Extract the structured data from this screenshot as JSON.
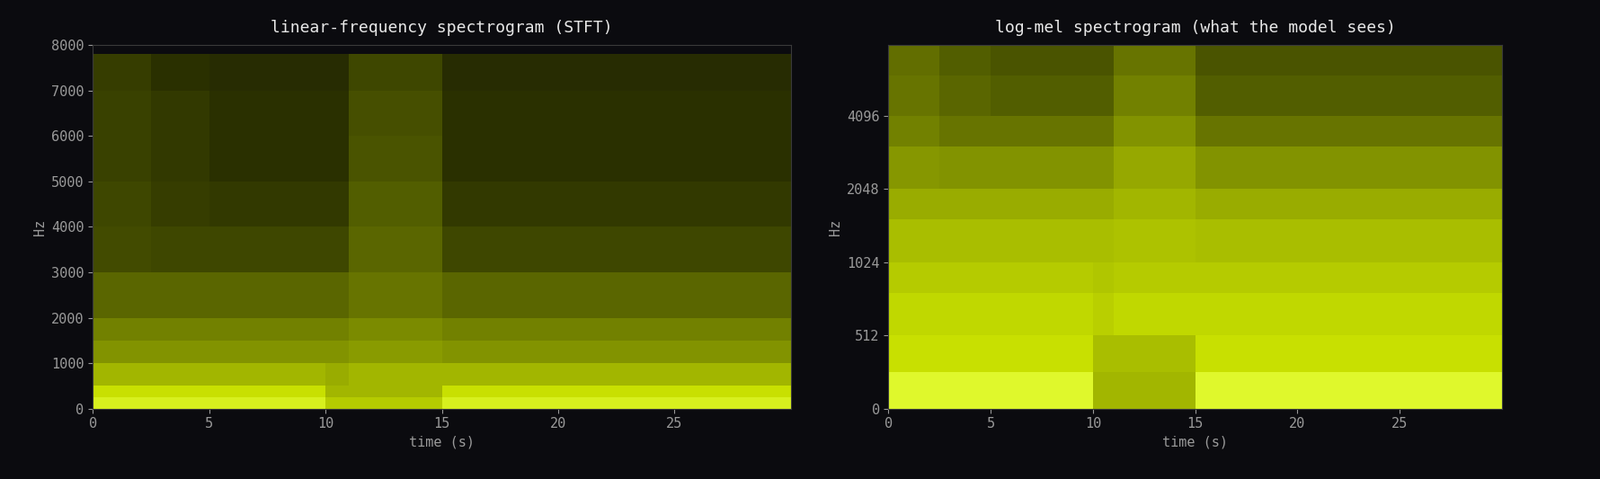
{
  "chart_data": [
    {
      "type": "heatmap",
      "title": "linear-frequency spectrogram (STFT)",
      "x_label": "time (s)",
      "y_label": "Hz",
      "xlim": [
        0,
        30
      ],
      "xticks": [
        0,
        5,
        10,
        15,
        20,
        25
      ],
      "ylim": [
        0,
        8000
      ],
      "yticks": [
        0,
        1000,
        2000,
        3000,
        4000,
        5000,
        6000,
        7000,
        8000
      ],
      "time_edges": [
        0,
        2.5,
        5,
        7.5,
        10,
        11,
        12.5,
        15,
        17.5,
        20,
        22.5,
        25,
        27.5,
        30
      ],
      "freq_edges": [
        0,
        250,
        500,
        1000,
        1500,
        2000,
        3000,
        4000,
        5000,
        6000,
        7000,
        7800,
        8000
      ],
      "clim": [
        -80,
        0
      ],
      "cells": [
        [
          -10,
          -10,
          -10,
          -10,
          -25,
          -25,
          -25,
          -10,
          -10,
          -10,
          -10,
          -10,
          -10
        ],
        [
          -20,
          -20,
          -20,
          -20,
          -30,
          -30,
          -30,
          -20,
          -20,
          -20,
          -20,
          -20,
          -20
        ],
        [
          -30,
          -30,
          -30,
          -30,
          -32,
          -30,
          -30,
          -30,
          -30,
          -30,
          -30,
          -30,
          -30
        ],
        [
          -38,
          -38,
          -38,
          -38,
          -38,
          -36,
          -36,
          -38,
          -38,
          -38,
          -38,
          -38,
          -38
        ],
        [
          -42,
          -42,
          -42,
          -42,
          -42,
          -40,
          -40,
          -42,
          -42,
          -42,
          -42,
          -42,
          -42
        ],
        [
          -48,
          -48,
          -48,
          -48,
          -48,
          -45,
          -45,
          -48,
          -48,
          -48,
          -48,
          -48,
          -48
        ],
        [
          -54,
          -55,
          -55,
          -55,
          -55,
          -48,
          -48,
          -55,
          -55,
          -55,
          -55,
          -55,
          -55
        ],
        [
          -55,
          -57,
          -58,
          -58,
          -58,
          -50,
          -50,
          -58,
          -58,
          -58,
          -58,
          -58,
          -58
        ],
        [
          -56,
          -58,
          -60,
          -60,
          -60,
          -52,
          -52,
          -60,
          -60,
          -60,
          -60,
          -60,
          -60
        ],
        [
          -56,
          -58,
          -60,
          -60,
          -60,
          -53,
          -53,
          -60,
          -60,
          -60,
          -60,
          -60,
          -60
        ],
        [
          -57,
          -60,
          -62,
          -62,
          -62,
          -55,
          -55,
          -62,
          -62,
          -62,
          -62,
          -62,
          -62
        ],
        [
          -80,
          -80,
          -80,
          -80,
          -80,
          -80,
          -80,
          -80,
          -80,
          -80,
          -80,
          -80,
          -80
        ]
      ]
    },
    {
      "type": "heatmap",
      "title": "log-mel spectrogram (what the model sees)",
      "x_label": "time (s)",
      "y_label": "Hz",
      "xlim": [
        0,
        30
      ],
      "xticks": [
        0,
        5,
        10,
        15,
        20,
        25
      ],
      "ylim": [
        0,
        8000
      ],
      "yticks": [
        0,
        512,
        1024,
        2048,
        4096
      ],
      "time_edges": [
        0,
        2.5,
        5,
        7.5,
        10,
        11,
        12.5,
        15,
        17.5,
        20,
        22.5,
        25,
        27.5,
        30
      ],
      "freq_edges": [
        0,
        256,
        512,
        768,
        1024,
        1536,
        2048,
        3072,
        4096,
        6000,
        8000
      ],
      "clim": [
        -80,
        0
      ],
      "cells": [
        [
          -5,
          -5,
          -5,
          -5,
          -30,
          -30,
          -30,
          -5,
          -5,
          -5,
          -5,
          -5,
          -5
        ],
        [
          -20,
          -20,
          -20,
          -20,
          -28,
          -28,
          -28,
          -20,
          -20,
          -20,
          -20,
          -20,
          -20
        ],
        [
          -22,
          -22,
          -22,
          -22,
          -24,
          -22,
          -22,
          -22,
          -22,
          -22,
          -22,
          -22,
          -22
        ],
        [
          -25,
          -25,
          -25,
          -25,
          -26,
          -25,
          -25,
          -25,
          -25,
          -25,
          -25,
          -25,
          -25
        ],
        [
          -28,
          -28,
          -28,
          -28,
          -28,
          -27,
          -27,
          -28,
          -28,
          -28,
          -28,
          -28,
          -28
        ],
        [
          -32,
          -32,
          -32,
          -32,
          -32,
          -30,
          -30,
          -32,
          -32,
          -32,
          -32,
          -32,
          -32
        ],
        [
          -37,
          -38,
          -38,
          -38,
          -38,
          -33,
          -33,
          -38,
          -38,
          -38,
          -38,
          -38,
          -38
        ],
        [
          -42,
          -45,
          -45,
          -45,
          -45,
          -38,
          -38,
          -45,
          -45,
          -45,
          -45,
          -45,
          -45
        ],
        [
          -45,
          -48,
          -50,
          -50,
          -50,
          -42,
          -42,
          -50,
          -50,
          -50,
          -50,
          -50,
          -50
        ],
        [
          -46,
          -50,
          -52,
          -52,
          -52,
          -45,
          -45,
          -52,
          -52,
          -52,
          -52,
          -52,
          -52
        ]
      ]
    }
  ]
}
